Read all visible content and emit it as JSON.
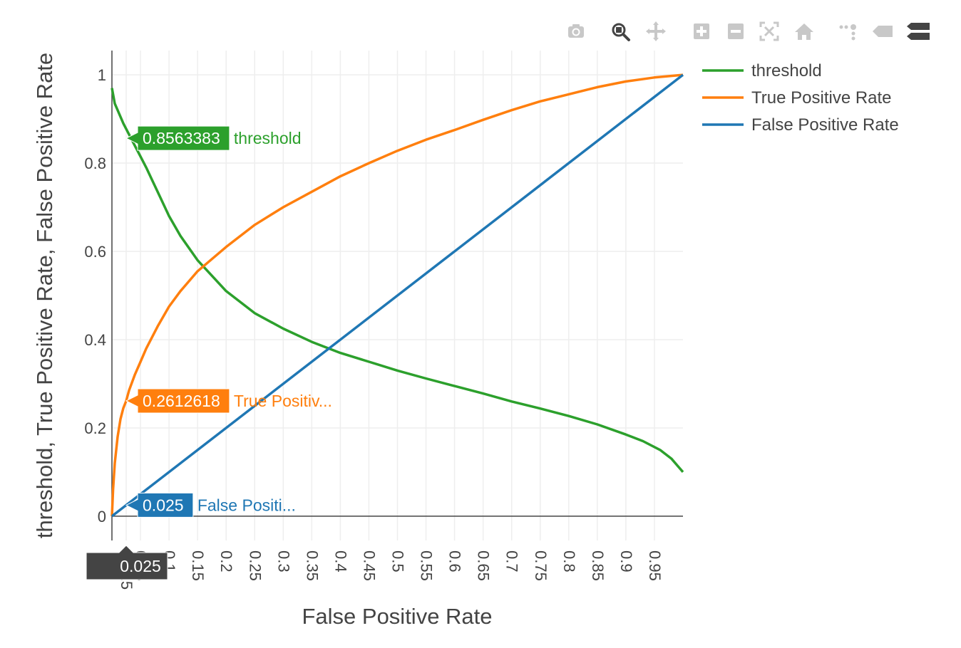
{
  "modebar": {
    "buttons": [
      {
        "name": "camera-icon"
      },
      {
        "name": "zoom-icon"
      },
      {
        "name": "pan-icon"
      },
      {
        "name": "zoom-in-icon"
      },
      {
        "name": "zoom-out-icon"
      },
      {
        "name": "autoscale-icon"
      },
      {
        "name": "reset-axes-icon"
      },
      {
        "name": "spike-lines-icon"
      },
      {
        "name": "hover-closest-icon"
      },
      {
        "name": "hover-compare-icon"
      }
    ]
  },
  "hover": {
    "x_label": "0.025",
    "labels": [
      {
        "value": "0.8563383",
        "name": "threshold",
        "y": 0.8563383,
        "color": "#2ca02c"
      },
      {
        "value": "0.2612618",
        "name": "True Positiv...",
        "y": 0.2612618,
        "color": "#ff7f0e"
      },
      {
        "value": "0.025",
        "name": "False Positi...",
        "y": 0.025,
        "color": "#1f77b4"
      }
    ],
    "x": 0.025
  },
  "chart_data": {
    "type": "line",
    "xlabel": "False Positive Rate",
    "ylabel": "threshold,  True Positive Rate,  False Positive Rate",
    "xlim": [
      0,
      1
    ],
    "ylim": [
      -0.055,
      1.055
    ],
    "x_ticks": [
      0.025,
      0.05,
      0.1,
      0.15,
      0.2,
      0.25,
      0.3,
      0.35,
      0.4,
      0.45,
      0.5,
      0.55,
      0.6,
      0.65,
      0.7,
      0.75,
      0.8,
      0.85,
      0.9,
      0.95
    ],
    "x_tick_labels": [
      "0.025",
      "0.05",
      "0.1",
      "0.15",
      "0.2",
      "0.25",
      "0.3",
      "0.35",
      "0.4",
      "0.45",
      "0.5",
      "0.55",
      "0.6",
      "0.65",
      "0.7",
      "0.75",
      "0.8",
      "0.85",
      "0.9",
      "0.95"
    ],
    "y_ticks": [
      0,
      0.2,
      0.4,
      0.6,
      0.8,
      1
    ],
    "y_tick_labels": [
      "0",
      "0.2",
      "0.4",
      "0.6",
      "0.8",
      "1"
    ],
    "grid": true,
    "legend_position": "top-right",
    "series": [
      {
        "name": "threshold",
        "color": "#2ca02c",
        "x": [
          0,
          0.005,
          0.01,
          0.02,
          0.03,
          0.04,
          0.05,
          0.06,
          0.08,
          0.1,
          0.12,
          0.15,
          0.2,
          0.25,
          0.3,
          0.35,
          0.4,
          0.45,
          0.5,
          0.55,
          0.6,
          0.65,
          0.7,
          0.75,
          0.8,
          0.85,
          0.9,
          0.93,
          0.96,
          0.98,
          0.99,
          1.0
        ],
        "y": [
          0.97,
          0.935,
          0.92,
          0.89,
          0.865,
          0.84,
          0.815,
          0.79,
          0.735,
          0.68,
          0.635,
          0.58,
          0.51,
          0.46,
          0.425,
          0.395,
          0.37,
          0.35,
          0.33,
          0.312,
          0.295,
          0.278,
          0.26,
          0.244,
          0.227,
          0.208,
          0.185,
          0.17,
          0.15,
          0.13,
          0.115,
          0.1
        ]
      },
      {
        "name": "True Positive Rate",
        "color": "#ff7f0e",
        "x": [
          0,
          0.002,
          0.005,
          0.01,
          0.015,
          0.02,
          0.025,
          0.03,
          0.04,
          0.05,
          0.06,
          0.08,
          0.1,
          0.12,
          0.15,
          0.2,
          0.25,
          0.3,
          0.35,
          0.4,
          0.45,
          0.5,
          0.55,
          0.6,
          0.65,
          0.7,
          0.75,
          0.8,
          0.85,
          0.9,
          0.95,
          1.0
        ],
        "y": [
          0,
          0.06,
          0.12,
          0.18,
          0.22,
          0.245,
          0.2612618,
          0.285,
          0.32,
          0.35,
          0.38,
          0.43,
          0.475,
          0.51,
          0.555,
          0.61,
          0.66,
          0.7,
          0.735,
          0.77,
          0.8,
          0.828,
          0.853,
          0.875,
          0.898,
          0.92,
          0.94,
          0.956,
          0.972,
          0.985,
          0.994,
          1.0
        ]
      },
      {
        "name": "False Positive Rate",
        "color": "#1f77b4",
        "x": [
          0,
          1
        ],
        "y": [
          0,
          1
        ]
      }
    ]
  }
}
